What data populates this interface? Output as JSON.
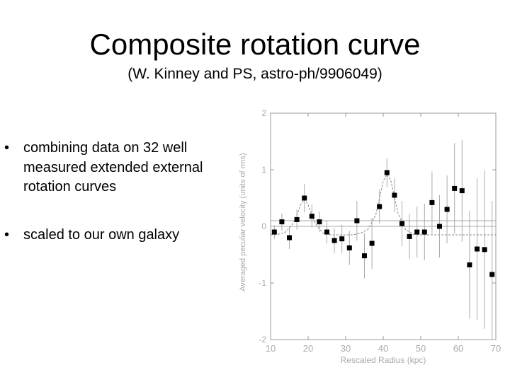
{
  "slide": {
    "title": "Composite rotation curve",
    "subtitle": "(W. Kinney and PS, astro-ph/9906049)",
    "bullets": [
      "combining data on 32 well measured extended external rotation curves",
      "scaled to our own galaxy"
    ]
  },
  "chart_data": {
    "type": "scatter",
    "title": "",
    "xlabel": "Rescaled Radius (kpc)",
    "ylabel": "Averaged peculiar velocity (units of rms)",
    "xlim": [
      10,
      70
    ],
    "ylim": [
      -2,
      2
    ],
    "x_ticks": [
      10,
      20,
      30,
      40,
      50,
      60,
      70
    ],
    "y_ticks": [
      -2,
      -1,
      0,
      1,
      2
    ],
    "y_tick_labels": [
      "-2",
      "-1",
      "0",
      "1",
      "2"
    ],
    "grid": false,
    "reference_lines": [
      0,
      0.1
    ],
    "series": [
      {
        "type": "points",
        "marker": "square",
        "color": "#000000",
        "x": [
          11,
          13,
          15,
          17,
          19,
          21,
          23,
          25,
          27,
          29,
          31,
          33,
          35,
          37,
          39,
          41,
          43,
          45,
          47,
          49,
          51,
          53,
          55,
          57,
          59,
          61,
          63,
          65,
          67,
          69
        ],
        "y": [
          -0.1,
          0.08,
          -0.2,
          0.12,
          0.5,
          0.18,
          0.08,
          -0.1,
          -0.25,
          -0.22,
          -0.38,
          0.1,
          -0.52,
          -0.3,
          0.35,
          0.95,
          0.55,
          0.05,
          -0.18,
          -0.1,
          -0.1,
          0.42,
          0.0,
          0.3,
          0.67,
          0.63,
          -0.68,
          -0.4,
          -0.41,
          -0.85
        ],
        "error": [
          0.12,
          0.15,
          0.2,
          0.18,
          0.25,
          0.2,
          0.18,
          0.2,
          0.22,
          0.25,
          0.3,
          0.35,
          0.4,
          0.45,
          0.3,
          0.25,
          0.3,
          0.4,
          0.4,
          0.45,
          0.5,
          0.55,
          0.55,
          0.6,
          0.8,
          0.9,
          0.95,
          1.25,
          1.4,
          1.3
        ]
      },
      {
        "type": "line",
        "style": "dashed",
        "color": "#888888",
        "x": [
          10,
          12,
          14,
          16,
          17,
          18,
          19,
          20,
          21,
          22,
          24,
          26,
          28,
          30,
          32,
          34,
          36,
          38,
          39,
          40,
          41,
          42,
          43,
          44,
          46,
          48,
          50,
          55,
          60,
          65,
          70
        ],
        "y": [
          -0.15,
          -0.14,
          -0.1,
          0.05,
          0.2,
          0.38,
          0.48,
          0.38,
          0.2,
          0.04,
          -0.12,
          -0.15,
          -0.15,
          -0.15,
          -0.15,
          -0.12,
          -0.05,
          0.2,
          0.5,
          0.8,
          0.92,
          0.82,
          0.52,
          0.22,
          -0.06,
          -0.14,
          -0.15,
          -0.15,
          -0.15,
          -0.15,
          -0.15
        ]
      }
    ]
  }
}
